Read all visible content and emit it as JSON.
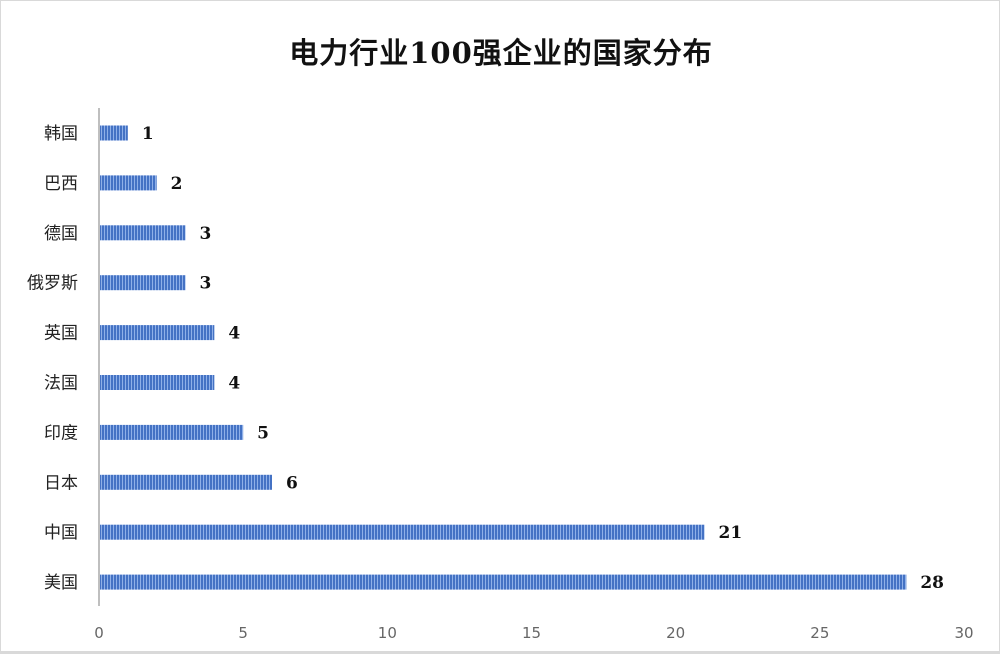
{
  "chart_data": {
    "type": "bar",
    "orientation": "horizontal",
    "title": "电力行业100强企业的国家分布",
    "categories": [
      "韩国",
      "巴西",
      "德国",
      "俄罗斯",
      "英国",
      "法国",
      "印度",
      "日本",
      "中国",
      "美国"
    ],
    "values": [
      1,
      2,
      3,
      3,
      4,
      4,
      5,
      6,
      21,
      28
    ],
    "xlim": [
      0,
      30
    ],
    "xticks": [
      0,
      5,
      10,
      15,
      20,
      25,
      30
    ],
    "grid": false,
    "bar_color": "#4472c4",
    "bar_pattern": "vertical-stripes",
    "data_labels": true
  }
}
